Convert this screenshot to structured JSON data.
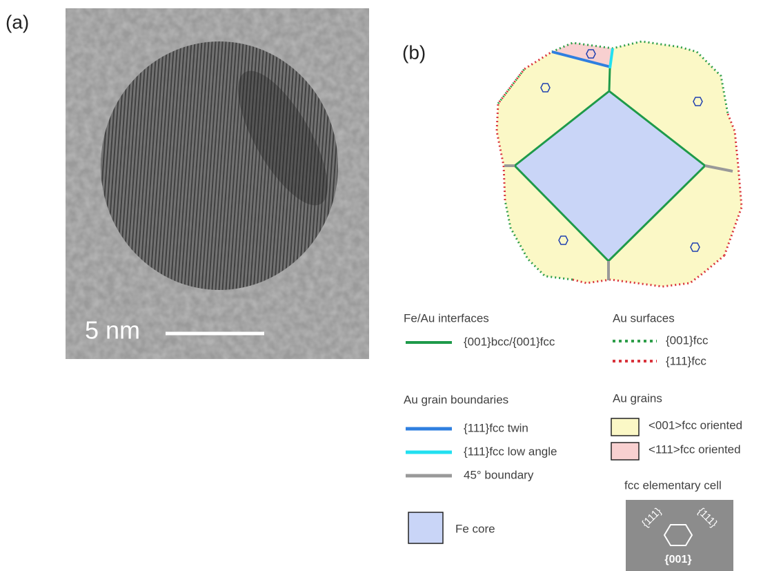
{
  "panel_a": {
    "label": "(a)",
    "scale_bar": "5 nm"
  },
  "panel_b": {
    "label": "(b)",
    "legend": {
      "interfaces": {
        "title": "Fe/Au interfaces",
        "items": [
          "{001}bcc/{001}fcc"
        ]
      },
      "surfaces": {
        "title": "Au surfaces",
        "items": [
          "{001}fcc",
          "{111}fcc"
        ]
      },
      "boundaries": {
        "title": "Au grain boundaries",
        "items": [
          "{111}fcc twin",
          "{111}fcc low angle",
          "45° boundary"
        ]
      },
      "grains": {
        "title": "Au grains",
        "items": [
          "<001>fcc oriented",
          "<111>fcc oriented"
        ]
      },
      "cell": {
        "title": "fcc elementary cell",
        "faces": [
          "{111}",
          "{111}",
          "{001}"
        ]
      },
      "core": {
        "items": [
          "Fe core"
        ]
      }
    }
  }
}
